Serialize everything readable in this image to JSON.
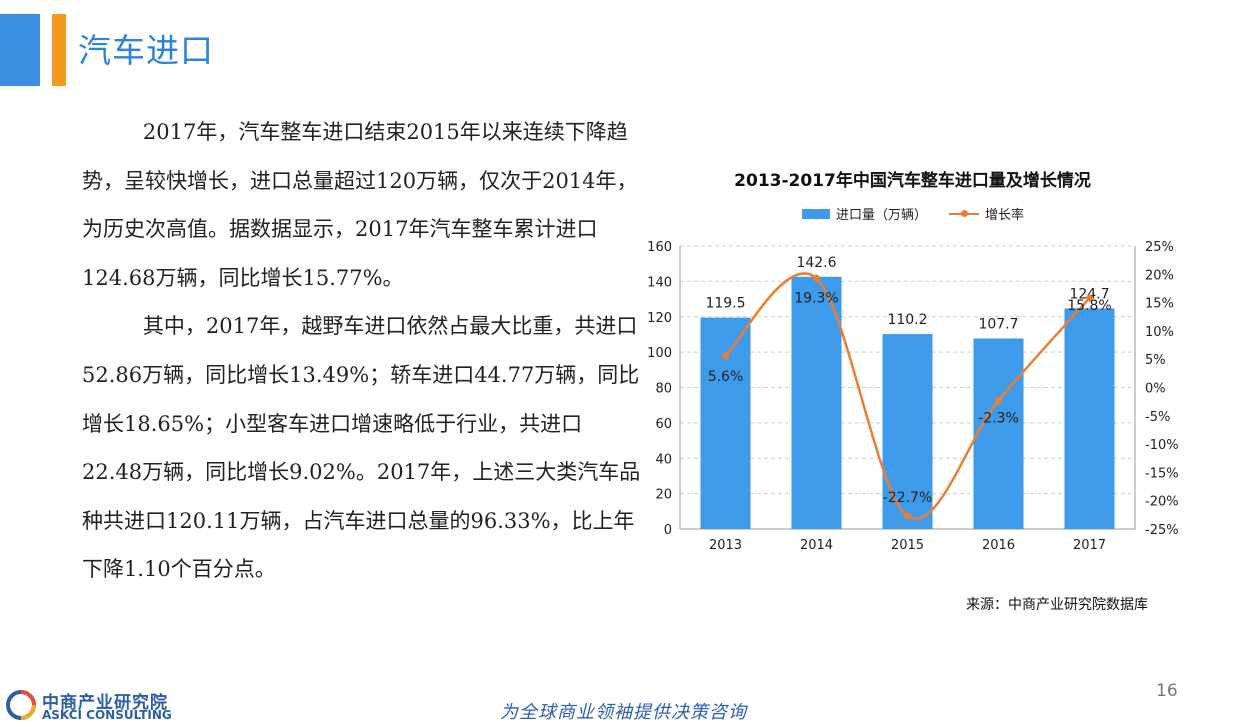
{
  "slide": {
    "title": "汽车进口",
    "page_number": "16",
    "slogan": "为全球商业领袖提供决策咨询",
    "source": "来源：中商产业研究院数据库"
  },
  "logo": {
    "name_cn": "中商产业研究院",
    "name_en": "ASKCI CONSULTING",
    "colors": [
      "#2b5ea8",
      "#e94e3c",
      "#f5a623"
    ]
  },
  "body": {
    "paragraph1": "2017年，汽车整车进口结束2015年以来连续下降趋势，呈较快增长，进口总量超过120万辆，仅次于2014年，为历史次高值。据数据显示，2017年汽车整车累计进口124.68万辆，同比增长15.77%。",
    "paragraph2": "其中，2017年，越野车进口依然占最大比重，共进口52.86万辆，同比增长13.49%；轿车进口44.77万辆，同比增长18.65%；小型客车进口增速略低于行业，共进口22.48万辆，同比增长9.02%。2017年，上述三大类汽车品种共进口120.11万辆，占汽车进口总量的96.33%，比上年下降1.10个百分点。"
  },
  "chart_data": {
    "type": "bar",
    "title": "2013-2017年中国汽车整车进口量及增长情况",
    "categories": [
      "2013",
      "2014",
      "2015",
      "2016",
      "2017"
    ],
    "series": [
      {
        "name": "进口量（万辆）",
        "type": "bar",
        "axis": "left",
        "color": "#3d9be9",
        "values": [
          119.5,
          142.6,
          110.2,
          107.7,
          124.7
        ],
        "labels": [
          "119.5",
          "142.6",
          "110.2",
          "107.7",
          "124.7"
        ]
      },
      {
        "name": "增长率",
        "type": "line",
        "axis": "right",
        "color": "#ed7d31",
        "values": [
          5.6,
          19.3,
          -22.7,
          -2.3,
          15.8
        ],
        "labels": [
          "5.6%",
          "19.3%",
          "-22.7%",
          "-2.3%",
          "15.8%"
        ]
      }
    ],
    "y_left": {
      "min": 0,
      "max": 160,
      "ticks": [
        "0",
        "20",
        "40",
        "60",
        "80",
        "100",
        "120",
        "140",
        "160"
      ]
    },
    "y_right": {
      "min": -25,
      "max": 25,
      "ticks": [
        "-25%",
        "-20%",
        "-15%",
        "-10%",
        "-5%",
        "0%",
        "5%",
        "10%",
        "15%",
        "20%",
        "25%"
      ]
    },
    "grid": true,
    "legend_position": "top"
  }
}
